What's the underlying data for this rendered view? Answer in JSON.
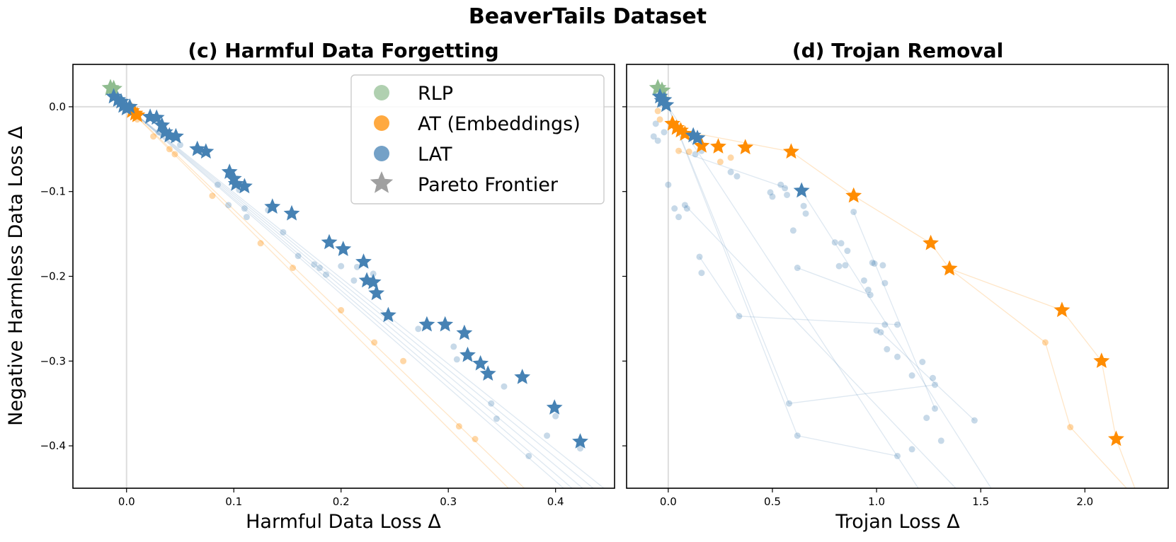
{
  "figure_title": "BeaverTails Dataset",
  "legend": [
    {
      "label": "RLP",
      "marker": "circle",
      "color": "#8fbc8f"
    },
    {
      "label": "AT (Embeddings)",
      "marker": "circle",
      "color": "#ff8c00"
    },
    {
      "label": "LAT",
      "marker": "circle",
      "color": "#4682b4"
    },
    {
      "label": "Pareto Frontier",
      "marker": "star",
      "color": "#808080"
    }
  ],
  "colors": {
    "rlp": "#8fbc8f",
    "at": "#ff8c00",
    "lat": "#4682b4",
    "ref_line": "#dddddd"
  },
  "chart_data": [
    {
      "type": "scatter",
      "id": "c",
      "title": "(c) Harmful Data Forgetting",
      "xlabel": "Harmful Data Loss Δ",
      "ylabel": "Negative Harmless Data Loss Δ",
      "xlim": [
        -0.05,
        0.455
      ],
      "ylim": [
        -0.45,
        0.05
      ],
      "xticks": [
        0.0,
        0.1,
        0.2,
        0.3,
        0.4
      ],
      "xtick_labels": [
        "0.0",
        "0.1",
        "0.2",
        "0.3",
        "0.4"
      ],
      "yticks": [
        0.0,
        -0.1,
        -0.2,
        -0.3,
        -0.4
      ],
      "ytick_labels": [
        "0.0",
        "−0.1",
        "−0.2",
        "−0.3",
        "−0.4"
      ],
      "rlp_stars": [
        [
          -0.015,
          0.022
        ],
        [
          -0.012,
          0.021
        ]
      ],
      "lat_frontier": [
        [
          -0.012,
          0.012
        ],
        [
          -0.008,
          0.008
        ],
        [
          -0.005,
          0.006
        ],
        [
          -0.003,
          0.001
        ],
        [
          0.0,
          -0.002
        ],
        [
          0.003,
          0.0
        ],
        [
          0.022,
          -0.012
        ],
        [
          0.028,
          -0.013
        ],
        [
          0.033,
          -0.022
        ],
        [
          0.036,
          -0.03
        ],
        [
          0.04,
          -0.034
        ],
        [
          0.046,
          -0.035
        ],
        [
          0.066,
          -0.05
        ],
        [
          0.074,
          -0.053
        ],
        [
          0.096,
          -0.077
        ],
        [
          0.1,
          -0.085
        ],
        [
          0.102,
          -0.091
        ],
        [
          0.11,
          -0.094
        ],
        [
          0.136,
          -0.118
        ],
        [
          0.154,
          -0.126
        ],
        [
          0.189,
          -0.16
        ],
        [
          0.202,
          -0.168
        ],
        [
          0.221,
          -0.183
        ],
        [
          0.224,
          -0.205
        ],
        [
          0.23,
          -0.207
        ],
        [
          0.233,
          -0.22
        ],
        [
          0.244,
          -0.246
        ],
        [
          0.28,
          -0.257
        ],
        [
          0.297,
          -0.257
        ],
        [
          0.315,
          -0.267
        ],
        [
          0.318,
          -0.293
        ],
        [
          0.33,
          -0.303
        ],
        [
          0.337,
          -0.315
        ],
        [
          0.369,
          -0.319
        ],
        [
          0.399,
          -0.355
        ],
        [
          0.423,
          -0.395
        ]
      ],
      "at_frontier": [
        [
          0.005,
          -0.005
        ],
        [
          0.008,
          -0.008
        ],
        [
          0.01,
          -0.01
        ]
      ],
      "lat_points": [
        [
          0.03,
          -0.03
        ],
        [
          0.05,
          -0.045
        ],
        [
          0.085,
          -0.092
        ],
        [
          0.105,
          -0.098
        ],
        [
          0.095,
          -0.116
        ],
        [
          0.11,
          -0.12
        ],
        [
          0.112,
          -0.13
        ],
        [
          0.132,
          -0.122
        ],
        [
          0.146,
          -0.148
        ],
        [
          0.16,
          -0.176
        ],
        [
          0.175,
          -0.186
        ],
        [
          0.18,
          -0.19
        ],
        [
          0.186,
          -0.198
        ],
        [
          0.2,
          -0.188
        ],
        [
          0.215,
          -0.189
        ],
        [
          0.212,
          -0.205
        ],
        [
          0.23,
          -0.197
        ],
        [
          0.272,
          -0.262
        ],
        [
          0.305,
          -0.283
        ],
        [
          0.308,
          -0.298
        ],
        [
          0.34,
          -0.35
        ],
        [
          0.345,
          -0.368
        ],
        [
          0.352,
          -0.33
        ],
        [
          0.375,
          -0.412
        ],
        [
          0.392,
          -0.388
        ],
        [
          0.4,
          -0.365
        ],
        [
          0.423,
          -0.403
        ]
      ],
      "at_points": [
        [
          0.01,
          -0.015
        ],
        [
          0.025,
          -0.035
        ],
        [
          0.04,
          -0.05
        ],
        [
          0.045,
          -0.056
        ],
        [
          0.08,
          -0.105
        ],
        [
          0.125,
          -0.161
        ],
        [
          0.155,
          -0.19
        ],
        [
          0.2,
          -0.24
        ],
        [
          0.231,
          -0.278
        ],
        [
          0.258,
          -0.3
        ],
        [
          0.31,
          -0.377
        ],
        [
          0.325,
          -0.392
        ]
      ],
      "lat_lines": [
        [
          [
            0.0,
            0.0
          ],
          [
            0.45,
            -0.455
          ]
        ],
        [
          [
            0.0,
            0.0
          ],
          [
            0.44,
            -0.455
          ]
        ],
        [
          [
            0.0,
            0.0
          ],
          [
            0.43,
            -0.455
          ]
        ],
        [
          [
            0.0,
            0.0
          ],
          [
            0.42,
            -0.455
          ]
        ],
        [
          [
            0.0,
            0.0
          ],
          [
            0.412,
            -0.455
          ]
        ]
      ],
      "at_lines": [
        [
          [
            0.0,
            0.0
          ],
          [
            0.375,
            -0.455
          ]
        ],
        [
          [
            0.0,
            0.0
          ],
          [
            0.36,
            -0.455
          ]
        ]
      ]
    },
    {
      "type": "scatter",
      "id": "d",
      "title": "(d) Trojan Removal",
      "xlabel": "Trojan Loss Δ",
      "ylabel": "",
      "xlim": [
        -0.2,
        2.4
      ],
      "ylim": [
        -0.45,
        0.05
      ],
      "xticks": [
        0.0,
        0.5,
        1.0,
        1.5,
        2.0
      ],
      "xtick_labels": [
        "0.0",
        "0.5",
        "1.0",
        "1.5",
        "2.0"
      ],
      "yticks": [
        0.0,
        -0.1,
        -0.2,
        -0.3,
        -0.4
      ],
      "ytick_labels": [],
      "rlp_stars": [
        [
          -0.05,
          0.022
        ],
        [
          -0.03,
          0.019
        ]
      ],
      "lat_frontier": [
        [
          -0.04,
          0.012
        ],
        [
          -0.03,
          0.007
        ],
        [
          -0.02,
          0.008
        ],
        [
          -0.01,
          0.002
        ],
        [
          0.12,
          -0.034
        ],
        [
          0.14,
          -0.037
        ],
        [
          0.64,
          -0.099
        ]
      ],
      "at_frontier": [
        [
          0.02,
          -0.02
        ],
        [
          0.04,
          -0.025
        ],
        [
          0.06,
          -0.028
        ],
        [
          0.08,
          -0.032
        ],
        [
          0.16,
          -0.046
        ],
        [
          0.24,
          -0.047
        ],
        [
          0.37,
          -0.048
        ],
        [
          0.59,
          -0.053
        ],
        [
          0.89,
          -0.105
        ],
        [
          1.26,
          -0.161
        ],
        [
          1.35,
          -0.191
        ],
        [
          1.89,
          -0.24
        ],
        [
          2.08,
          -0.3
        ],
        [
          2.15,
          -0.392
        ]
      ],
      "lat_points": [
        [
          -0.06,
          -0.02
        ],
        [
          -0.07,
          -0.035
        ],
        [
          -0.05,
          -0.04
        ],
        [
          -0.02,
          -0.03
        ],
        [
          0.0,
          -0.092
        ],
        [
          0.03,
          -0.12
        ],
        [
          0.05,
          -0.13
        ],
        [
          0.08,
          -0.116
        ],
        [
          0.09,
          -0.12
        ],
        [
          0.13,
          -0.056
        ],
        [
          0.16,
          -0.052
        ],
        [
          0.15,
          -0.177
        ],
        [
          0.16,
          -0.196
        ],
        [
          0.34,
          -0.247
        ],
        [
          0.3,
          -0.077
        ],
        [
          0.33,
          -0.082
        ],
        [
          0.49,
          -0.101
        ],
        [
          0.5,
          -0.106
        ],
        [
          0.54,
          -0.092
        ],
        [
          0.56,
          -0.096
        ],
        [
          0.57,
          -0.104
        ],
        [
          0.6,
          -0.146
        ],
        [
          0.62,
          -0.19
        ],
        [
          0.65,
          -0.117
        ],
        [
          0.66,
          -0.126
        ],
        [
          0.58,
          -0.35
        ],
        [
          0.62,
          -0.388
        ],
        [
          0.8,
          -0.16
        ],
        [
          0.83,
          -0.161
        ],
        [
          0.82,
          -0.188
        ],
        [
          0.85,
          -0.187
        ],
        [
          0.86,
          -0.17
        ],
        [
          0.89,
          -0.124
        ],
        [
          0.94,
          -0.205
        ],
        [
          0.96,
          -0.216
        ],
        [
          0.97,
          -0.222
        ],
        [
          0.98,
          -0.184
        ],
        [
          0.99,
          -0.185
        ],
        [
          1.0,
          -0.264
        ],
        [
          1.02,
          -0.266
        ],
        [
          1.03,
          -0.187
        ],
        [
          1.04,
          -0.208
        ],
        [
          1.04,
          -0.257
        ],
        [
          1.05,
          -0.286
        ],
        [
          1.1,
          -0.257
        ],
        [
          1.1,
          -0.295
        ],
        [
          1.1,
          -0.412
        ],
        [
          1.17,
          -0.317
        ],
        [
          1.17,
          -0.404
        ],
        [
          1.22,
          -0.301
        ],
        [
          1.24,
          -0.367
        ],
        [
          1.27,
          -0.32
        ],
        [
          1.28,
          -0.328
        ],
        [
          1.28,
          -0.356
        ],
        [
          1.31,
          -0.394
        ],
        [
          1.47,
          -0.37
        ]
      ],
      "at_points": [
        [
          -0.05,
          -0.005
        ],
        [
          -0.04,
          -0.015
        ],
        [
          0.05,
          -0.052
        ],
        [
          0.1,
          -0.053
        ],
        [
          0.25,
          -0.065
        ],
        [
          0.3,
          -0.06
        ],
        [
          1.81,
          -0.278
        ],
        [
          1.93,
          -0.378
        ]
      ],
      "lat_lines": [
        [
          [
            0.0,
            0.0
          ],
          [
            0.62,
            -0.388
          ]
        ],
        [
          [
            0.0,
            0.0
          ],
          [
            0.58,
            -0.35
          ]
        ],
        [
          [
            0.0,
            0.0
          ],
          [
            1.2,
            -0.45
          ]
        ],
        [
          [
            0.08,
            -0.116
          ],
          [
            1.38,
            -0.45
          ]
        ],
        [
          [
            0.64,
            -0.099
          ],
          [
            1.55,
            -0.45
          ]
        ],
        [
          [
            0.15,
            -0.177
          ],
          [
            0.34,
            -0.247
          ]
        ],
        [
          [
            0.34,
            -0.247
          ],
          [
            1.1,
            -0.257
          ]
        ],
        [
          [
            0.58,
            -0.35
          ],
          [
            1.28,
            -0.328
          ]
        ],
        [
          [
            0.89,
            -0.124
          ],
          [
            1.28,
            -0.356
          ]
        ],
        [
          [
            1.02,
            -0.266
          ],
          [
            1.47,
            -0.37
          ]
        ],
        [
          [
            0.62,
            -0.388
          ],
          [
            1.1,
            -0.412
          ]
        ],
        [
          [
            0.62,
            -0.19
          ],
          [
            0.97,
            -0.222
          ]
        ],
        [
          [
            0.05,
            -0.052
          ],
          [
            0.57,
            -0.096
          ]
        ]
      ],
      "at_lines": [
        [
          [
            0.06,
            -0.028
          ],
          [
            0.59,
            -0.053
          ]
        ],
        [
          [
            0.59,
            -0.053
          ],
          [
            0.89,
            -0.105
          ]
        ],
        [
          [
            0.89,
            -0.105
          ],
          [
            1.26,
            -0.161
          ]
        ],
        [
          [
            1.26,
            -0.161
          ],
          [
            1.35,
            -0.191
          ]
        ],
        [
          [
            1.35,
            -0.191
          ],
          [
            1.89,
            -0.24
          ]
        ],
        [
          [
            1.89,
            -0.24
          ],
          [
            2.08,
            -0.3
          ]
        ],
        [
          [
            2.08,
            -0.3
          ],
          [
            2.15,
            -0.392
          ]
        ],
        [
          [
            2.15,
            -0.392
          ],
          [
            2.24,
            -0.45
          ]
        ],
        [
          [
            1.35,
            -0.191
          ],
          [
            1.81,
            -0.278
          ]
        ],
        [
          [
            1.81,
            -0.278
          ],
          [
            1.93,
            -0.378
          ]
        ],
        [
          [
            1.93,
            -0.378
          ],
          [
            2.2,
            -0.45
          ]
        ]
      ]
    }
  ]
}
